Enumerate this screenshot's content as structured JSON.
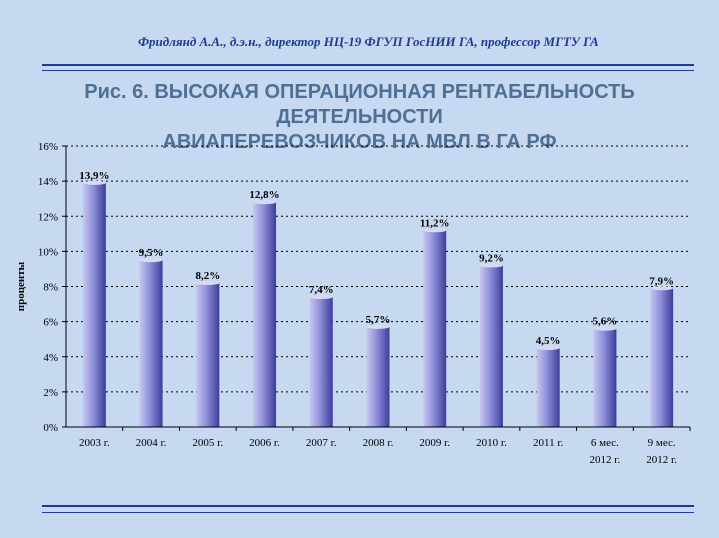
{
  "header": {
    "author_line": "Фридлянд А.А., д.э.н., директор  НЦ-19 ФГУП ГосНИИ ГА, профессор МГТУ ГА"
  },
  "slide": {
    "title_line1": "Рис. 6. ВЫСОКАЯ ОПЕРАЦИОННАЯ РЕНТАБЕЛЬНОСТЬ ДЕЯТЕЛЬНОСТИ",
    "title_line2": "АВИАПЕРЕВОЗЧИКОВ НА МВЛ В ГА РФ"
  },
  "colors": {
    "background": "#c6d9f1",
    "title": "#4f6f95",
    "header": "#1f3a93",
    "bar_light": "#c7c7ef",
    "bar_dark": "#3d3d9a"
  },
  "chart_data": {
    "type": "bar",
    "title": "",
    "xlabel": "",
    "ylabel": "проценты",
    "ylim": [
      0,
      16
    ],
    "yticks": [
      "0%",
      "2%",
      "4%",
      "6%",
      "8%",
      "10%",
      "12%",
      "14%",
      "16%"
    ],
    "grid": "horizontal-dashed",
    "categories": [
      [
        "2003 г."
      ],
      [
        "2004 г."
      ],
      [
        "2005 г."
      ],
      [
        "2006 г."
      ],
      [
        "2007 г."
      ],
      [
        "2008 г."
      ],
      [
        "2009 г."
      ],
      [
        "2010 г."
      ],
      [
        "2011 г."
      ],
      [
        "6 мес.",
        "2012 г."
      ],
      [
        "9 мес.",
        "2012 г."
      ]
    ],
    "values": [
      13.9,
      9.5,
      8.2,
      12.8,
      7.4,
      5.7,
      11.2,
      9.2,
      4.5,
      5.6,
      7.9
    ],
    "data_labels": [
      "13,9%",
      "9,5%",
      "8,2%",
      "12,8%",
      "7,4%",
      "5,7%",
      "11,2%",
      "9,2%",
      "4,5%",
      "5,6%",
      "7,9%"
    ]
  }
}
